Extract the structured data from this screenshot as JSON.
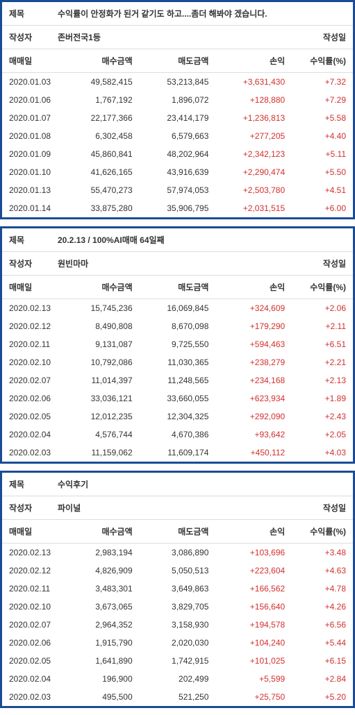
{
  "labels": {
    "title": "제목",
    "author": "작성자",
    "date": "작성일",
    "trade_date": "매매일",
    "buy_amount": "매수금액",
    "sell_amount": "매도금액",
    "profit": "손익",
    "rate": "수익률(%)"
  },
  "colors": {
    "border": "#1a4c96",
    "positive": "#d32f2f",
    "text": "#333333",
    "divider": "#dddddd",
    "bg": "#ffffff"
  },
  "cards": [
    {
      "title": "수익률이 안정화가 된거 같기도 하고....좀더 해봐야 겠습니다.",
      "author": "존버전국1등",
      "rows": [
        {
          "date": "2020.01.03",
          "buy": "49,582,415",
          "sell": "53,213,845",
          "profit": "+3,631,430",
          "rate": "+7.32"
        },
        {
          "date": "2020.01.06",
          "buy": "1,767,192",
          "sell": "1,896,072",
          "profit": "+128,880",
          "rate": "+7.29"
        },
        {
          "date": "2020.01.07",
          "buy": "22,177,366",
          "sell": "23,414,179",
          "profit": "+1,236,813",
          "rate": "+5.58"
        },
        {
          "date": "2020.01.08",
          "buy": "6,302,458",
          "sell": "6,579,663",
          "profit": "+277,205",
          "rate": "+4.40"
        },
        {
          "date": "2020.01.09",
          "buy": "45,860,841",
          "sell": "48,202,964",
          "profit": "+2,342,123",
          "rate": "+5.11"
        },
        {
          "date": "2020.01.10",
          "buy": "41,626,165",
          "sell": "43,916,639",
          "profit": "+2,290,474",
          "rate": "+5.50"
        },
        {
          "date": "2020.01.13",
          "buy": "55,470,273",
          "sell": "57,974,053",
          "profit": "+2,503,780",
          "rate": "+4.51"
        },
        {
          "date": "2020.01.14",
          "buy": "33,875,280",
          "sell": "35,906,795",
          "profit": "+2,031,515",
          "rate": "+6.00"
        }
      ]
    },
    {
      "title": "20.2.13 / 100%AI매매 64일째",
      "author": "원빈마마",
      "rows": [
        {
          "date": "2020.02.13",
          "buy": "15,745,236",
          "sell": "16,069,845",
          "profit": "+324,609",
          "rate": "+2.06"
        },
        {
          "date": "2020.02.12",
          "buy": "8,490,808",
          "sell": "8,670,098",
          "profit": "+179,290",
          "rate": "+2.11"
        },
        {
          "date": "2020.02.11",
          "buy": "9,131,087",
          "sell": "9,725,550",
          "profit": "+594,463",
          "rate": "+6.51"
        },
        {
          "date": "2020.02.10",
          "buy": "10,792,086",
          "sell": "11,030,365",
          "profit": "+238,279",
          "rate": "+2.21"
        },
        {
          "date": "2020.02.07",
          "buy": "11,014,397",
          "sell": "11,248,565",
          "profit": "+234,168",
          "rate": "+2.13"
        },
        {
          "date": "2020.02.06",
          "buy": "33,036,121",
          "sell": "33,660,055",
          "profit": "+623,934",
          "rate": "+1.89"
        },
        {
          "date": "2020.02.05",
          "buy": "12,012,235",
          "sell": "12,304,325",
          "profit": "+292,090",
          "rate": "+2.43"
        },
        {
          "date": "2020.02.04",
          "buy": "4,576,744",
          "sell": "4,670,386",
          "profit": "+93,642",
          "rate": "+2.05"
        },
        {
          "date": "2020.02.03",
          "buy": "11,159,062",
          "sell": "11,609,174",
          "profit": "+450,112",
          "rate": "+4.03"
        }
      ]
    },
    {
      "title": "수익후기",
      "author": "파이널",
      "rows": [
        {
          "date": "2020.02.13",
          "buy": "2,983,194",
          "sell": "3,086,890",
          "profit": "+103,696",
          "rate": "+3.48"
        },
        {
          "date": "2020.02.12",
          "buy": "4,826,909",
          "sell": "5,050,513",
          "profit": "+223,604",
          "rate": "+4.63"
        },
        {
          "date": "2020.02.11",
          "buy": "3,483,301",
          "sell": "3,649,863",
          "profit": "+166,562",
          "rate": "+4.78"
        },
        {
          "date": "2020.02.10",
          "buy": "3,673,065",
          "sell": "3,829,705",
          "profit": "+156,640",
          "rate": "+4.26"
        },
        {
          "date": "2020.02.07",
          "buy": "2,964,352",
          "sell": "3,158,930",
          "profit": "+194,578",
          "rate": "+6.56"
        },
        {
          "date": "2020.02.06",
          "buy": "1,915,790",
          "sell": "2,020,030",
          "profit": "+104,240",
          "rate": "+5.44"
        },
        {
          "date": "2020.02.05",
          "buy": "1,641,890",
          "sell": "1,742,915",
          "profit": "+101,025",
          "rate": "+6.15"
        },
        {
          "date": "2020.02.04",
          "buy": "196,900",
          "sell": "202,499",
          "profit": "+5,599",
          "rate": "+2.84"
        },
        {
          "date": "2020.02.03",
          "buy": "495,500",
          "sell": "521,250",
          "profit": "+25,750",
          "rate": "+5.20"
        }
      ]
    }
  ]
}
